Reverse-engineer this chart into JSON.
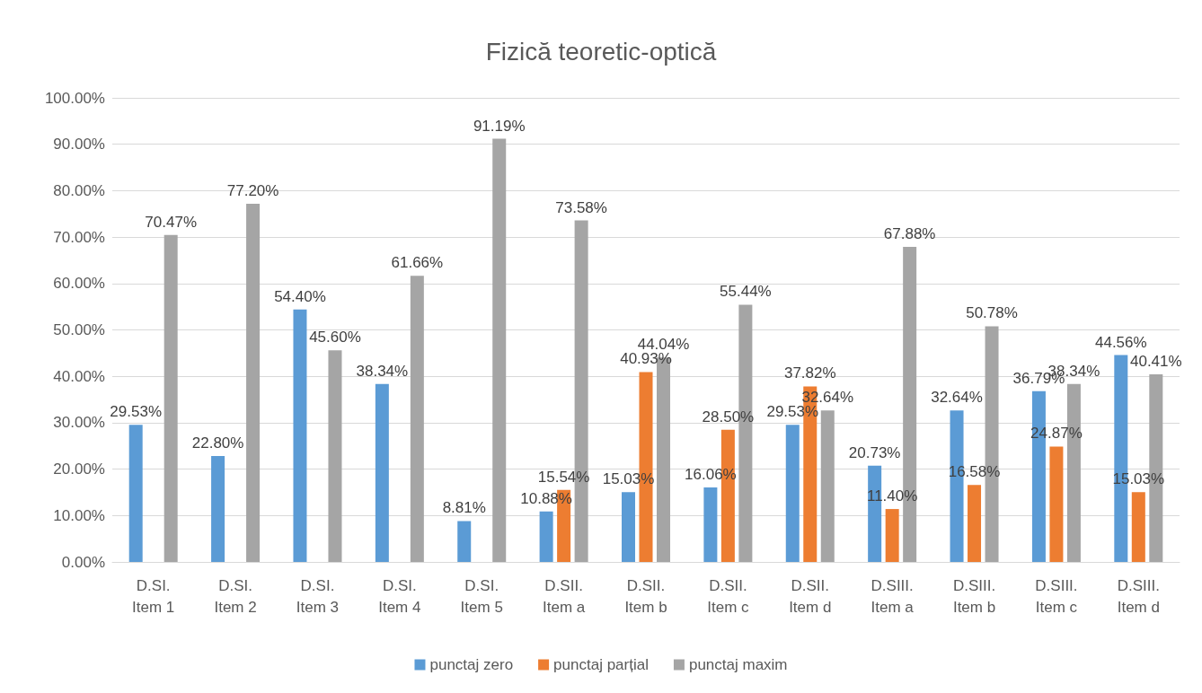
{
  "chart_data": {
    "type": "bar",
    "title": "Fizică teoretic-optică",
    "categories": [
      "D.SI.\nItem 1",
      "D.SI.\nItem 2",
      "D.SI.\nItem 3",
      "D.SI.\nItem 4",
      "D.SI.\nItem 5",
      "D.SII.\nItem a",
      "D.SII.\nItem b",
      "D.SII.\nItem c",
      "D.SII.\nItem d",
      "D.SIII.\nItem a",
      "D.SIII.\nItem b",
      "D.SIII.\nItem c",
      "D.SIII.\nItem d"
    ],
    "series": [
      {
        "name": "punctaj zero",
        "color": "#5b9bd5",
        "values": [
          29.53,
          22.8,
          54.4,
          38.34,
          8.81,
          10.88,
          15.03,
          16.06,
          29.53,
          20.73,
          32.64,
          36.79,
          44.56
        ],
        "value_labels": [
          "29.53%",
          "22.80%",
          "54.40%",
          "38.34%",
          "8.81%",
          "10.88%",
          "15.03%",
          "16.06%",
          "29.53%",
          "20.73%",
          "32.64%",
          "36.79%",
          "44.56%"
        ]
      },
      {
        "name": "punctaj parțial",
        "color": "#ed7d31",
        "values": [
          null,
          null,
          null,
          null,
          null,
          15.54,
          40.93,
          28.5,
          37.82,
          11.4,
          16.58,
          24.87,
          15.03
        ],
        "value_labels": [
          null,
          null,
          null,
          null,
          null,
          "15.54%",
          "40.93%",
          "28.50%",
          "37.82%",
          "11.40%",
          "16.58%",
          "24.87%",
          "15.03%"
        ]
      },
      {
        "name": "punctaj maxim",
        "color": "#a5a5a5",
        "values": [
          70.47,
          77.2,
          45.6,
          61.66,
          91.19,
          73.58,
          44.04,
          55.44,
          32.64,
          67.88,
          50.78,
          38.34,
          40.41
        ],
        "value_labels": [
          "70.47%",
          "77.20%",
          "45.60%",
          "61.66%",
          "91.19%",
          "73.58%",
          "44.04%",
          "55.44%",
          "32.64%",
          "67.88%",
          "50.78%",
          "38.34%",
          "40.41%"
        ]
      }
    ],
    "ylim": [
      0,
      100
    ],
    "yticks": [
      {
        "value": 0,
        "label": "0.00%"
      },
      {
        "value": 10,
        "label": "10.00%"
      },
      {
        "value": 20,
        "label": "20.00%"
      },
      {
        "value": 30,
        "label": "30.00%"
      },
      {
        "value": 40,
        "label": "40.00%"
      },
      {
        "value": 50,
        "label": "50.00%"
      },
      {
        "value": 60,
        "label": "60.00%"
      },
      {
        "value": 70,
        "label": "70.00%"
      },
      {
        "value": 80,
        "label": "80.00%"
      },
      {
        "value": 90,
        "label": "90.00%"
      },
      {
        "value": 100,
        "label": "100.00%"
      }
    ],
    "grid": "y",
    "legend": "bottom"
  }
}
